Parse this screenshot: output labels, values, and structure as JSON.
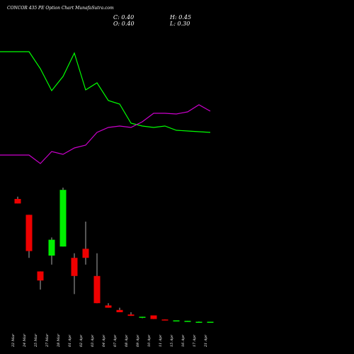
{
  "header": {
    "title": "CONCOR 435 PE Option  Chart MunafaSutra.com",
    "close": "C: 0.40",
    "open": "O: 0.40",
    "high": "H: 0.45",
    "low": "L: 0.30"
  },
  "colors": {
    "up": "#00ee00",
    "down": "#ee0000",
    "line_green": "#00ff00",
    "line_magenta": "#cc00cc",
    "wick": "#aaaaaa"
  },
  "chart_data": {
    "type": "candlestick",
    "categories": [
      "22 Mar",
      "24 Mar",
      "25 Mar",
      "27 Mar",
      "28 Mar",
      "01 Apr",
      "02 Apr",
      "03 Apr",
      "04 Apr",
      "07 Apr",
      "08 Apr",
      "09 Apr",
      "10 Apr",
      "11 Apr",
      "15 Apr",
      "16 Apr",
      "17 Apr",
      "21 Apr"
    ],
    "candles": [
      {
        "open": 27.5,
        "high": 28.0,
        "low": 26.5,
        "close": 26.5
      },
      {
        "open": 24.0,
        "high": 24.0,
        "low": 14.5,
        "close": 16.0
      },
      {
        "open": 11.5,
        "high": 11.5,
        "low": 7.5,
        "close": 9.5
      },
      {
        "open": 15.0,
        "high": 19.0,
        "low": 13.0,
        "close": 18.5
      },
      {
        "open": 17.0,
        "high": 30.0,
        "low": 17.0,
        "close": 29.5
      },
      {
        "open": 14.5,
        "high": 15.5,
        "low": 6.5,
        "close": 10.5
      },
      {
        "open": 16.5,
        "high": 22.5,
        "low": 13.0,
        "close": 14.5
      },
      {
        "open": 10.5,
        "high": 15.5,
        "low": 4.5,
        "close": 4.5
      },
      {
        "open": 4.0,
        "high": 4.5,
        "low": 3.5,
        "close": 3.5
      },
      {
        "open": 3.0,
        "high": 3.5,
        "low": 2.5,
        "close": 2.5
      },
      {
        "open": 2.0,
        "high": 2.5,
        "low": 1.7,
        "close": 1.7
      },
      {
        "open": 1.4,
        "high": 1.5,
        "low": 1.2,
        "close": 1.5
      },
      {
        "open": 1.8,
        "high": 1.8,
        "low": 1.0,
        "close": 1.0
      },
      {
        "open": 0.9,
        "high": 0.9,
        "low": 0.8,
        "close": 0.8
      },
      {
        "open": 0.6,
        "high": 0.7,
        "low": 0.6,
        "close": 0.7
      },
      {
        "open": 0.5,
        "high": 0.6,
        "low": 0.5,
        "close": 0.6
      },
      {
        "open": 0.4,
        "high": 0.45,
        "low": 0.3,
        "close": 0.4
      },
      {
        "open": 0.35,
        "high": 0.4,
        "low": 0.3,
        "close": 0.4
      }
    ],
    "lines": [
      {
        "color": "green",
        "values": [
          73,
          73,
          97,
          128,
          108,
          75,
          127,
          117,
          142,
          147,
          174,
          178,
          180,
          178,
          184,
          185,
          186,
          187
        ]
      },
      {
        "color": "magenta",
        "values": [
          219,
          219,
          231,
          214,
          218,
          209,
          205,
          187,
          180,
          178,
          180,
          172,
          160,
          160,
          161,
          158,
          148,
          157
        ]
      }
    ]
  }
}
